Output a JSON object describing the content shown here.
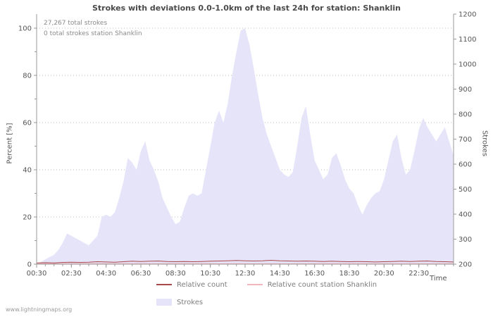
{
  "annotations": {
    "total_strokes": "27,267 total strokes",
    "station_total": "0 total strokes station Shanklin"
  },
  "watermark": "www.lightningmaps.org",
  "colors": {
    "background": "#ffffff",
    "grid": "#bdbdbd",
    "axis": "#9a9a9a",
    "tick_text": "#555555",
    "title_text": "#4a4a4a",
    "annotation_text": "#8a8a8a",
    "legend_text": "#7d7d7d",
    "area_fill": "#e6e4f9",
    "relative_count_line": "#a84848",
    "station_line": "#f2b6bd"
  },
  "legend": [
    {
      "label": "Relative count",
      "type": "line",
      "color": "#a84848"
    },
    {
      "label": "Relative count station Shanklin",
      "type": "line",
      "color": "#f2b6bd"
    },
    {
      "label": "Strokes",
      "type": "area",
      "color": "#e6e4f9"
    }
  ],
  "chart_data": {
    "type": "area",
    "title": "Strokes with deviations 0.0-1.0km of the last 24h for station: Shanklin",
    "xlabel": "Time",
    "ylabel_left": "Percent  [%]",
    "ylabel_right": "Strokes",
    "x_range": [
      0.5,
      24.5
    ],
    "ylim_left": [
      0,
      100
    ],
    "ylim_right": [
      200,
      1200
    ],
    "grid": "horizontal-dotted",
    "legend_position": "bottom-center",
    "left_ticks": [
      0,
      20,
      40,
      60,
      80,
      100
    ],
    "right_ticks": [
      200,
      300,
      400,
      500,
      600,
      700,
      800,
      900,
      1000,
      1100,
      1200
    ],
    "x_tick_hours": [
      0.5,
      2.5,
      4.5,
      6.5,
      8.5,
      10.5,
      12.5,
      14.5,
      16.5,
      18.5,
      20.5,
      22.5
    ],
    "x_tick_labels": [
      "00:30",
      "02:30",
      "04:30",
      "06:30",
      "08:30",
      "10:30",
      "12:30",
      "14:30",
      "16:30",
      "18:30",
      "20:30",
      "22:30"
    ],
    "series": [
      {
        "name": "Strokes",
        "type": "area",
        "axis": "left",
        "unit": "percent_of_max",
        "color": "#e6e4f9",
        "x": [
          0.5,
          0.75,
          1,
          1.25,
          1.5,
          1.75,
          2,
          2.25,
          2.5,
          2.75,
          3,
          3.25,
          3.5,
          3.75,
          4,
          4.25,
          4.5,
          4.75,
          5,
          5.25,
          5.5,
          5.75,
          6,
          6.25,
          6.5,
          6.75,
          7,
          7.25,
          7.5,
          7.75,
          8,
          8.25,
          8.5,
          8.75,
          9,
          9.25,
          9.5,
          9.75,
          10,
          10.25,
          10.5,
          10.75,
          11,
          11.25,
          11.5,
          11.75,
          12,
          12.25,
          12.5,
          12.75,
          13,
          13.25,
          13.5,
          13.75,
          14,
          14.25,
          14.5,
          14.75,
          15,
          15.25,
          15.5,
          15.75,
          16,
          16.25,
          16.5,
          16.75,
          17,
          17.25,
          17.5,
          17.75,
          18,
          18.25,
          18.5,
          18.75,
          19,
          19.25,
          19.5,
          19.75,
          20,
          20.25,
          20.5,
          20.75,
          21,
          21.25,
          21.5,
          21.75,
          22,
          22.25,
          22.5,
          22.75,
          23,
          23.25,
          23.5,
          23.75,
          24,
          24.25,
          24.5
        ],
        "values": [
          0,
          1,
          2,
          3,
          4,
          6,
          9,
          13,
          12,
          11,
          10,
          9,
          8,
          10,
          12,
          20,
          21,
          20,
          22,
          28,
          35,
          45,
          43,
          40,
          48,
          52,
          44,
          40,
          35,
          28,
          24,
          20,
          17,
          18,
          24,
          29,
          30,
          29,
          30,
          40,
          50,
          60,
          65,
          60,
          68,
          80,
          90,
          99,
          100,
          93,
          83,
          72,
          62,
          55,
          50,
          45,
          40,
          38,
          37,
          39,
          50,
          62,
          67,
          55,
          44,
          40,
          36,
          38,
          45,
          47,
          42,
          36,
          32,
          30,
          25,
          21,
          25,
          28,
          30,
          31,
          36,
          44,
          52,
          55,
          45,
          38,
          40,
          48,
          57,
          62,
          58,
          55,
          52,
          55,
          58,
          52,
          46
        ]
      },
      {
        "name": "Relative count",
        "type": "line",
        "axis": "left",
        "unit": "percent",
        "color": "#a84848",
        "x": [
          0.5,
          1,
          1.5,
          2,
          2.5,
          3,
          3.5,
          4,
          4.5,
          5,
          5.5,
          6,
          6.5,
          7,
          7.5,
          8,
          8.5,
          9,
          9.5,
          10,
          10.5,
          11,
          11.5,
          12,
          12.5,
          13,
          13.5,
          14,
          14.5,
          15,
          15.5,
          16,
          16.5,
          17,
          17.5,
          18,
          18.5,
          19,
          19.5,
          20,
          20.5,
          21,
          21.5,
          22,
          22.5,
          23,
          23.5,
          24,
          24.5
        ],
        "values": [
          0.3,
          0.4,
          0.3,
          0.5,
          0.6,
          0.5,
          0.6,
          0.8,
          0.7,
          0.6,
          0.8,
          1.0,
          0.9,
          1.0,
          1.1,
          0.9,
          0.8,
          0.9,
          0.8,
          0.9,
          1.0,
          1.1,
          1.2,
          1.3,
          1.2,
          1.1,
          1.2,
          1.4,
          1.2,
          1.1,
          1.0,
          1.1,
          1.0,
          0.9,
          1.0,
          0.9,
          0.8,
          0.9,
          0.8,
          0.7,
          0.8,
          0.9,
          1.0,
          0.9,
          1.0,
          1.1,
          0.9,
          0.8,
          0.7
        ]
      },
      {
        "name": "Relative count station Shanklin",
        "type": "line",
        "axis": "left",
        "unit": "percent",
        "color": "#f2b6bd",
        "x": [
          0.5,
          24.5
        ],
        "values": [
          0,
          0
        ]
      }
    ]
  }
}
